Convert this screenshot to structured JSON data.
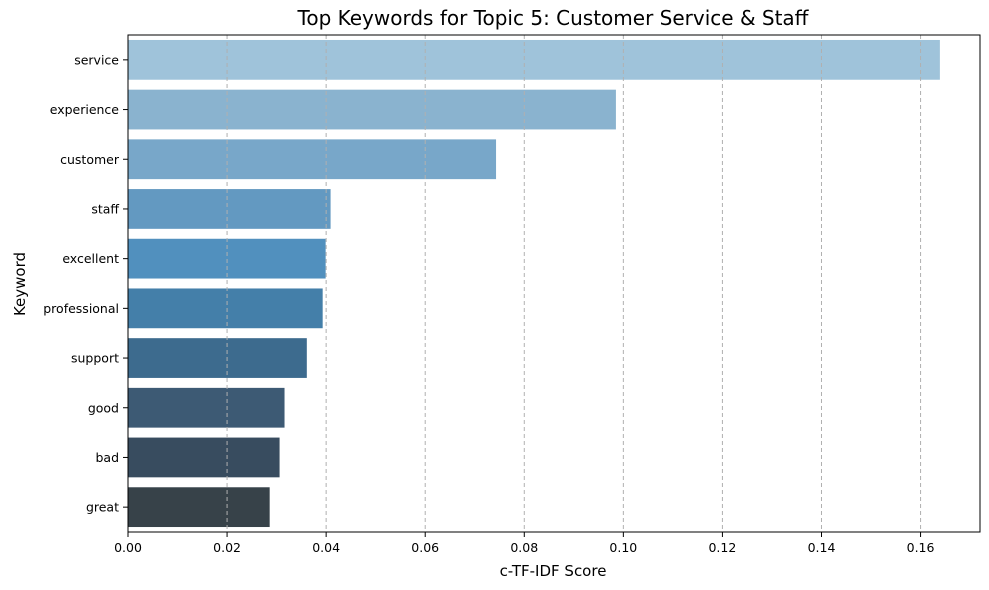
{
  "chart_data": {
    "type": "bar",
    "orientation": "horizontal",
    "title": "Top Keywords for Topic 5: Customer Service & Staff",
    "xlabel": "c-TF-IDF Score",
    "ylabel": "Keyword",
    "categories": [
      "service",
      "experience",
      "customer",
      "staff",
      "excellent",
      "professional",
      "support",
      "good",
      "bad",
      "great"
    ],
    "values": [
      0.1639,
      0.0985,
      0.0743,
      0.0409,
      0.0399,
      0.0393,
      0.0361,
      0.0316,
      0.0306,
      0.0286
    ],
    "colors": [
      "#9fc3da",
      "#8ab3cf",
      "#78a7c9",
      "#6399c1",
      "#5190be",
      "#447fa9",
      "#3d6b8e",
      "#3d5a74",
      "#384c5f",
      "#374249"
    ],
    "xlim": [
      0,
      0.172
    ],
    "xticks": [
      0.0,
      0.02,
      0.04,
      0.06,
      0.08,
      0.1,
      0.12,
      0.14,
      0.16
    ],
    "xtick_labels": [
      "0.00",
      "0.02",
      "0.04",
      "0.06",
      "0.08",
      "0.10",
      "0.12",
      "0.14",
      "0.16"
    ],
    "grid": "x-dashed"
  }
}
